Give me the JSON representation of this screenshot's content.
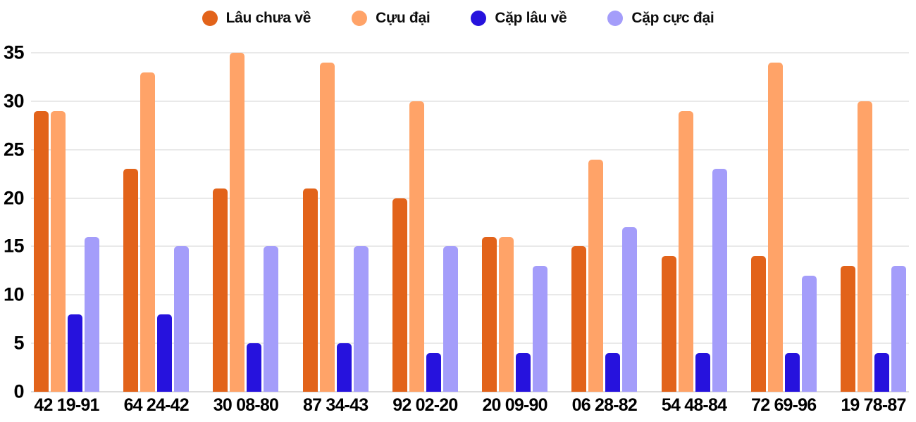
{
  "chart_data": {
    "type": "bar",
    "title": "",
    "xlabel": "",
    "ylabel": "",
    "categories": [
      "42 19-91",
      "64 24-42",
      "30 08-80",
      "87 34-43",
      "92 02-20",
      "20 09-90",
      "06 28-82",
      "54 48-84",
      "72 69-96",
      "19 78-87"
    ],
    "series": [
      {
        "name": "Lâu chưa về",
        "color": "#E2631A",
        "values": [
          29,
          23,
          21,
          21,
          20,
          16,
          15,
          14,
          14,
          13
        ]
      },
      {
        "name": "Cựu đại",
        "color": "#FFA368",
        "values": [
          29,
          33,
          35,
          34,
          30,
          16,
          24,
          29,
          34,
          30
        ]
      },
      {
        "name": "Cặp lâu về",
        "color": "#2612DD",
        "values": [
          8,
          8,
          5,
          5,
          4,
          4,
          4,
          4,
          4,
          4
        ]
      },
      {
        "name": "Cặp cực đại",
        "color": "#A49DFA",
        "values": [
          16,
          15,
          15,
          15,
          15,
          13,
          17,
          23,
          12,
          13
        ]
      }
    ],
    "y_axis": {
      "min": 0,
      "max": 35,
      "step": 5,
      "ticks": [
        0,
        5,
        10,
        15,
        20,
        25,
        30,
        35
      ]
    },
    "grid": true,
    "gridline_color": "#E9E9E9",
    "baseline_color": "#DCDCDC",
    "axis_text_color": "#000000",
    "legend_position": "top"
  }
}
